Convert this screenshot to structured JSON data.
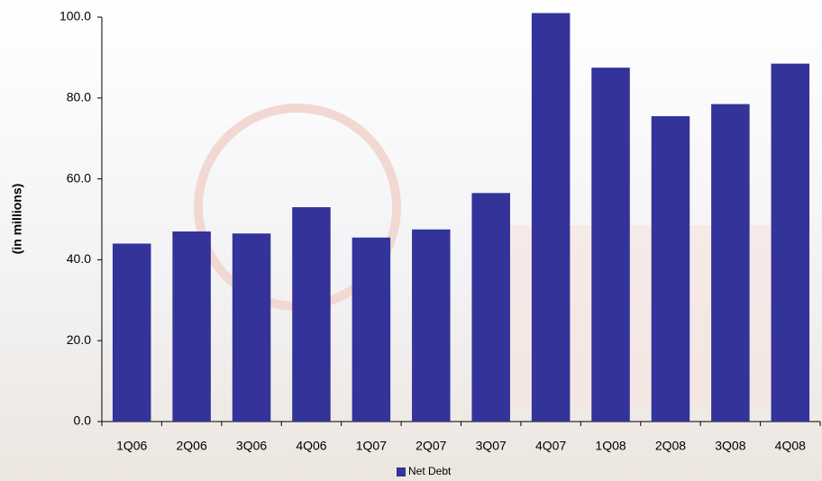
{
  "chart_data": {
    "type": "bar",
    "y_label": "(in millions)",
    "categories": [
      "1Q06",
      "2Q06",
      "3Q06",
      "4Q06",
      "1Q07",
      "2Q07",
      "3Q07",
      "4Q07",
      "1Q08",
      "2Q08",
      "3Q08",
      "4Q08"
    ],
    "series": [
      {
        "name": "Net Debt",
        "color": "#333399",
        "values": [
          44,
          47,
          46.5,
          53,
          45.5,
          47.5,
          56.5,
          101,
          87.5,
          75.5,
          78.5,
          88.5
        ]
      }
    ],
    "ylim": [
      0,
      100
    ],
    "yticks": [
      {
        "value": 0,
        "label": "0.0"
      },
      {
        "value": 20,
        "label": "20.0"
      },
      {
        "value": 40,
        "label": "40.0"
      },
      {
        "value": 60,
        "label": "60.0"
      },
      {
        "value": 80,
        "label": "80.0"
      },
      {
        "value": 100,
        "label": "100.0"
      }
    ],
    "grid": false,
    "legend": "bottom"
  }
}
